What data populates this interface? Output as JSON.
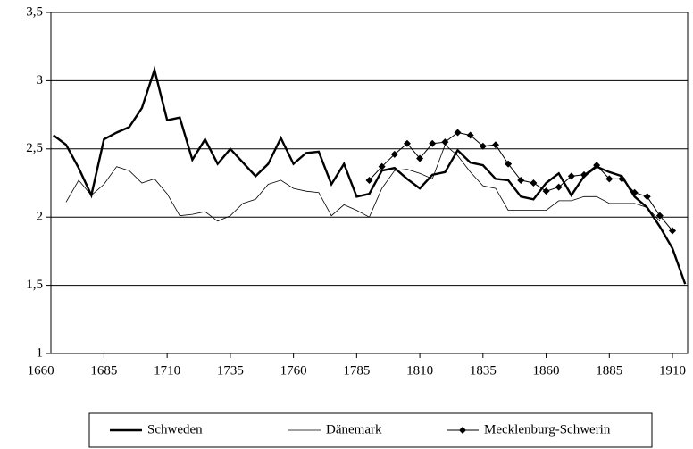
{
  "chart_data": {
    "type": "line",
    "xlim": [
      1664,
      1916
    ],
    "xticks": [
      1660,
      1685,
      1710,
      1735,
      1760,
      1785,
      1810,
      1835,
      1860,
      1885,
      1910
    ],
    "ylim": [
      1,
      3.5
    ],
    "yticks": [
      1,
      {
        "value": 1.5,
        "label": "1,5"
      },
      2,
      {
        "value": 2.5,
        "label": "2,5"
      },
      3,
      {
        "value": 3.5,
        "label": "3,5"
      }
    ],
    "grid": true,
    "legend": "bottom",
    "series": [
      {
        "name": "Schweden",
        "color": "#000000",
        "width": 2.4,
        "marker": false,
        "x": [
          1665,
          1670,
          1675,
          1680,
          1685,
          1690,
          1695,
          1700,
          1705,
          1710,
          1715,
          1720,
          1725,
          1730,
          1735,
          1740,
          1745,
          1750,
          1755,
          1760,
          1765,
          1770,
          1775,
          1780,
          1785,
          1790,
          1795,
          1800,
          1805,
          1810,
          1815,
          1820,
          1825,
          1830,
          1835,
          1840,
          1845,
          1850,
          1855,
          1860,
          1865,
          1870,
          1875,
          1880,
          1885,
          1890,
          1895,
          1900,
          1905,
          1910,
          1915
        ],
        "values": [
          2.6,
          2.53,
          2.36,
          2.16,
          2.57,
          2.62,
          2.66,
          2.8,
          3.08,
          2.71,
          2.73,
          2.42,
          2.57,
          2.39,
          2.5,
          2.4,
          2.3,
          2.39,
          2.58,
          2.39,
          2.47,
          2.48,
          2.24,
          2.39,
          2.15,
          2.17,
          2.34,
          2.36,
          2.28,
          2.21,
          2.31,
          2.33,
          2.49,
          2.4,
          2.38,
          2.28,
          2.27,
          2.15,
          2.13,
          2.25,
          2.32,
          2.16,
          2.3,
          2.37,
          2.33,
          2.3,
          2.15,
          2.07,
          1.93,
          1.77,
          1.51
        ]
      },
      {
        "name": "Dänemark",
        "color": "#000000",
        "width": 0.8,
        "marker": false,
        "x": [
          1670,
          1675,
          1680,
          1685,
          1690,
          1695,
          1700,
          1705,
          1710,
          1715,
          1720,
          1725,
          1730,
          1735,
          1740,
          1745,
          1750,
          1755,
          1760,
          1765,
          1770,
          1775,
          1780,
          1785,
          1790,
          1795,
          1800,
          1805,
          1810,
          1815,
          1820,
          1825,
          1830,
          1835,
          1840,
          1845,
          1850,
          1855,
          1860,
          1865,
          1870,
          1875,
          1880,
          1885,
          1890,
          1895,
          1900,
          1905
        ],
        "values": [
          2.11,
          2.27,
          2.16,
          2.24,
          2.37,
          2.34,
          2.25,
          2.28,
          2.17,
          2.01,
          2.02,
          2.04,
          1.97,
          2.01,
          2.1,
          2.13,
          2.24,
          2.27,
          2.21,
          2.19,
          2.18,
          2.01,
          2.09,
          2.05,
          2.0,
          2.21,
          2.34,
          2.35,
          2.32,
          2.28,
          2.53,
          2.45,
          2.33,
          2.23,
          2.21,
          2.05,
          2.05,
          2.05,
          2.05,
          2.12,
          2.12,
          2.15,
          2.15,
          2.1,
          2.1,
          2.1,
          2.07,
          1.97
        ]
      },
      {
        "name": "Mecklenburg-Schwerin",
        "color": "#000000",
        "width": 1,
        "marker": true,
        "x": [
          1790,
          1795,
          1800,
          1805,
          1810,
          1815,
          1820,
          1825,
          1830,
          1835,
          1840,
          1845,
          1850,
          1855,
          1860,
          1865,
          1870,
          1875,
          1880,
          1885,
          1890,
          1895,
          1900,
          1905,
          1910
        ],
        "values": [
          2.27,
          2.37,
          2.46,
          2.54,
          2.43,
          2.54,
          2.55,
          2.62,
          2.6,
          2.52,
          2.53,
          2.39,
          2.27,
          2.25,
          2.19,
          2.22,
          2.3,
          2.31,
          2.38,
          2.28,
          2.28,
          2.18,
          2.15,
          2.01,
          1.9
        ]
      }
    ]
  }
}
